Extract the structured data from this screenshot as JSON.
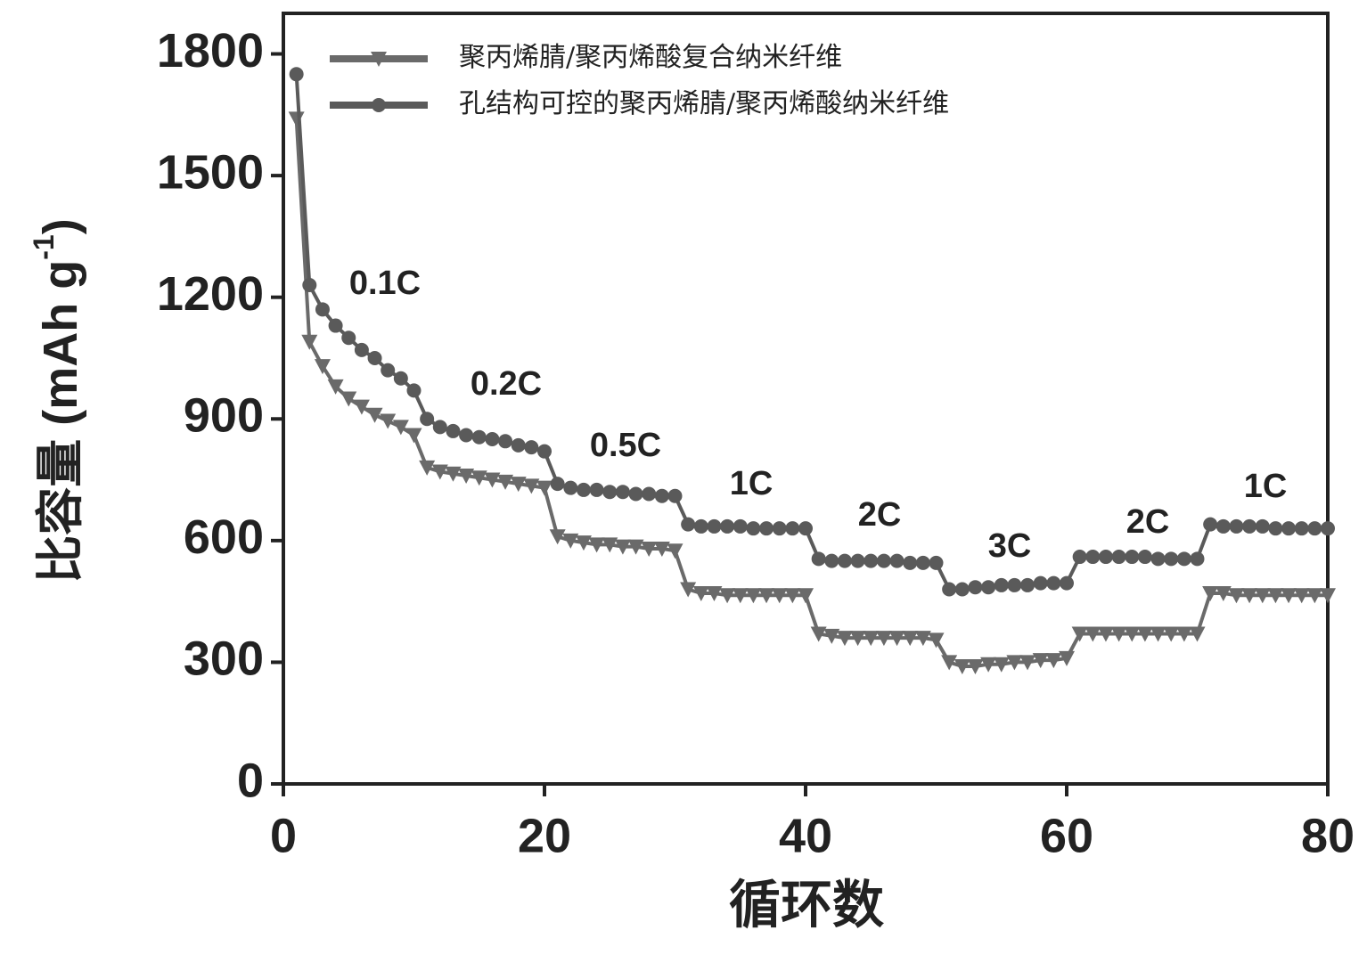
{
  "chart_data": {
    "type": "line",
    "xlabel": "循环数",
    "ylabel": [
      "比容量 (mAh g",
      "-1",
      ")"
    ],
    "xlim": [
      0,
      80
    ],
    "xticks": [
      0,
      20,
      40,
      60,
      80
    ],
    "ylim": [
      0,
      1900
    ],
    "yticks": [
      0,
      300,
      600,
      900,
      1200,
      1500,
      1800
    ],
    "legend": "upper left",
    "x": [
      1,
      2,
      3,
      4,
      5,
      6,
      7,
      8,
      9,
      10,
      11,
      12,
      13,
      14,
      15,
      16,
      17,
      18,
      19,
      20,
      21,
      22,
      23,
      24,
      25,
      26,
      27,
      28,
      29,
      30,
      31,
      32,
      33,
      34,
      35,
      36,
      37,
      38,
      39,
      40,
      41,
      42,
      43,
      44,
      45,
      46,
      47,
      48,
      49,
      50,
      51,
      52,
      53,
      54,
      55,
      56,
      57,
      58,
      59,
      60,
      61,
      62,
      63,
      64,
      65,
      66,
      67,
      68,
      69,
      70,
      71,
      72,
      73,
      74,
      75,
      76,
      77,
      78,
      79,
      80
    ],
    "series": [
      {
        "name": "聚丙烯腈/聚丙烯酸复合纳米纤维",
        "color": "#6a6a6a",
        "marker": "triangle-down",
        "values": [
          1640,
          1090,
          1030,
          980,
          950,
          930,
          910,
          895,
          880,
          860,
          780,
          770,
          765,
          760,
          755,
          750,
          745,
          740,
          735,
          730,
          610,
          600,
          595,
          590,
          590,
          585,
          585,
          580,
          580,
          575,
          480,
          470,
          470,
          465,
          465,
          465,
          465,
          465,
          465,
          465,
          370,
          365,
          360,
          360,
          360,
          360,
          360,
          360,
          360,
          355,
          300,
          290,
          290,
          295,
          295,
          300,
          300,
          305,
          305,
          310,
          370,
          370,
          370,
          370,
          370,
          370,
          370,
          370,
          370,
          370,
          470,
          470,
          465,
          465,
          465,
          465,
          465,
          465,
          465,
          465
        ]
      },
      {
        "name": "孔结构可控的聚丙烯腈/聚丙烯酸纳米纤维",
        "color": "#5a5a5a",
        "marker": "circle",
        "values": [
          1750,
          1230,
          1170,
          1130,
          1100,
          1070,
          1050,
          1020,
          1000,
          970,
          900,
          880,
          870,
          860,
          855,
          850,
          845,
          835,
          830,
          820,
          740,
          730,
          725,
          725,
          720,
          720,
          715,
          715,
          710,
          710,
          640,
          635,
          635,
          635,
          635,
          630,
          630,
          630,
          630,
          630,
          555,
          550,
          550,
          550,
          550,
          550,
          550,
          545,
          545,
          545,
          480,
          480,
          485,
          485,
          490,
          490,
          490,
          495,
          495,
          495,
          560,
          560,
          560,
          560,
          560,
          560,
          555,
          555,
          555,
          555,
          640,
          635,
          635,
          635,
          635,
          630,
          630,
          630,
          630,
          630
        ]
      }
    ],
    "annotations": [
      "0.1C",
      "0.2C",
      "0.5C",
      "1C",
      "2C",
      "3C",
      "2C",
      "1C"
    ]
  }
}
